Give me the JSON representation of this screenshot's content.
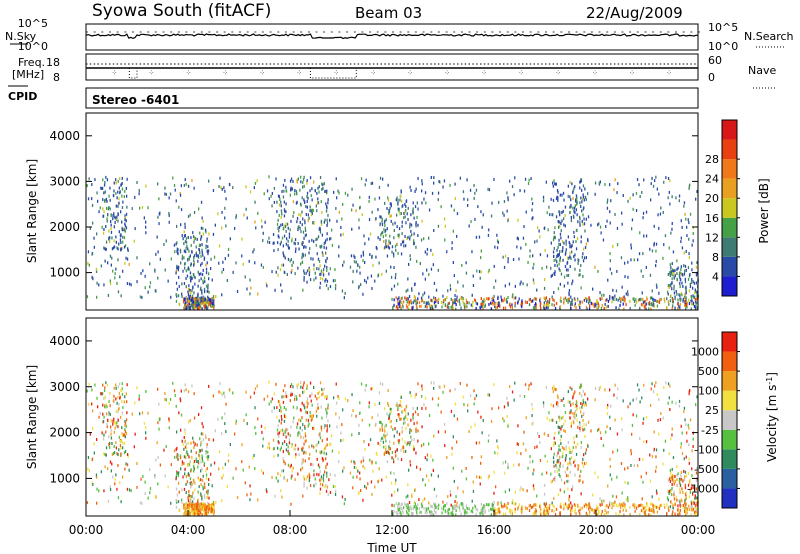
{
  "header": {
    "title": "Syowa South (fitACF)",
    "beam": "Beam 03",
    "date": "22/Aug/2009"
  },
  "sky_panel": {
    "left_label": "N.Sky",
    "right_label": "N.Search",
    "left_ticks": [
      "10^5",
      "10^0"
    ],
    "right_ticks": [
      "10^5",
      "10^0"
    ]
  },
  "freq_panel": {
    "left_label_1": "Freq.",
    "left_label_2": "[MHz]",
    "left_ticks": [
      "18",
      "8"
    ],
    "right_label": "Nave",
    "right_ticks": [
      "60",
      "0"
    ]
  },
  "cpid": {
    "label": "CPID",
    "value": "Stereo -6401"
  },
  "chart_data": [
    {
      "type": "heatmap",
      "name": "power",
      "ylabel": "Slant Range [km]",
      "ylim": [
        180,
        4500
      ],
      "yticks": [
        "1000",
        "2000",
        "3000",
        "4000"
      ],
      "colorbar_label": "Power [dB]",
      "colorbar_ticks": [
        "4",
        "8",
        "12",
        "16",
        "20",
        "24",
        "28"
      ],
      "colorbar_colors": [
        "#1e1ed0",
        "#2a4aa8",
        "#3e7b72",
        "#46a046",
        "#c8c820",
        "#e8a020",
        "#f07818",
        "#e84010",
        "#d81818"
      ]
    },
    {
      "type": "heatmap",
      "name": "velocity",
      "ylabel": "Slant Range [km]",
      "ylim": [
        180,
        4500
      ],
      "yticks": [
        "1000",
        "2000",
        "3000",
        "4000"
      ],
      "colorbar_label": "Velocity [m s^-1]",
      "colorbar_ticks": [
        "1000",
        "500",
        "100",
        "25",
        "-25",
        "-100",
        "-500",
        "-1000"
      ],
      "colorbar_colors": [
        "#2030c0",
        "#2a60a0",
        "#2f8a5e",
        "#56c040",
        "#c8c8c8",
        "#f0e040",
        "#f0a020",
        "#f06010",
        "#e82010"
      ]
    }
  ],
  "xaxis": {
    "label": "Time UT",
    "ticks": [
      "00:00",
      "04:00",
      "08:00",
      "12:00",
      "16:00",
      "20:00",
      "00:00"
    ]
  }
}
